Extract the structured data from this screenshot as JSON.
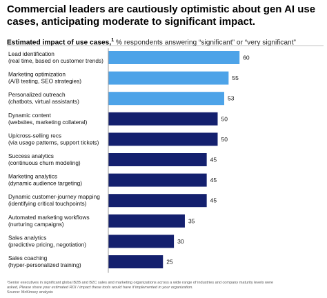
{
  "title": "Commercial leaders are cautiously optimistic about gen AI use cases, anticipating moderate to significant impact.",
  "subtitle": {
    "strong": "Estimated impact of use cases,",
    "superscript": "1",
    "rest": " % respondents answering “significant” or “very significant”"
  },
  "colors": {
    "light_blue": "#4da3e8",
    "dark_navy": "#14206e"
  },
  "chart_data": {
    "type": "bar",
    "orientation": "horizontal",
    "title": "Estimated impact of use cases",
    "xlim": [
      0,
      60
    ],
    "grid": false,
    "categories": [
      [
        "Lead identification",
        "(real time, based on customer trends)"
      ],
      [
        "Marketing optimization",
        "(A/B testing, SEO strategies)"
      ],
      [
        "Personalized outreach",
        "(chatbots, virtual assistants)"
      ],
      [
        "Dynamic content",
        "(websites, marketing collateral)"
      ],
      [
        "Up/cross-selling recs",
        "(via usage patterns, support tickets)"
      ],
      [
        "Success analytics",
        "(continuous churn modeling)"
      ],
      [
        "Marketing analytics",
        "(dynamic audience targeting)"
      ],
      [
        "Dynamic customer-journey mapping",
        "(identifying critical touchpoints)"
      ],
      [
        "Automated marketing workflows",
        "(nurturing campaigns)"
      ],
      [
        "Sales analytics",
        "(predictive pricing, negotiation)"
      ],
      [
        "Sales coaching",
        "(hyper-personalized training)"
      ]
    ],
    "values": [
      60,
      55,
      53,
      50,
      50,
      45,
      45,
      45,
      35,
      30,
      25
    ],
    "bar_colors": [
      "light_blue",
      "light_blue",
      "light_blue",
      "dark_navy",
      "dark_navy",
      "dark_navy",
      "dark_navy",
      "dark_navy",
      "dark_navy",
      "dark_navy",
      "dark_navy"
    ]
  },
  "footnote": {
    "line1": "¹Senior executives in significant global B2B and B2C sales and marketing organizations across a wide range of industries and company maturity levels were",
    "line2": "asked, Please share your estimated ROI / impact these tools would have if implemented in your organization.",
    "source": "Source: McKinsey analysis"
  }
}
